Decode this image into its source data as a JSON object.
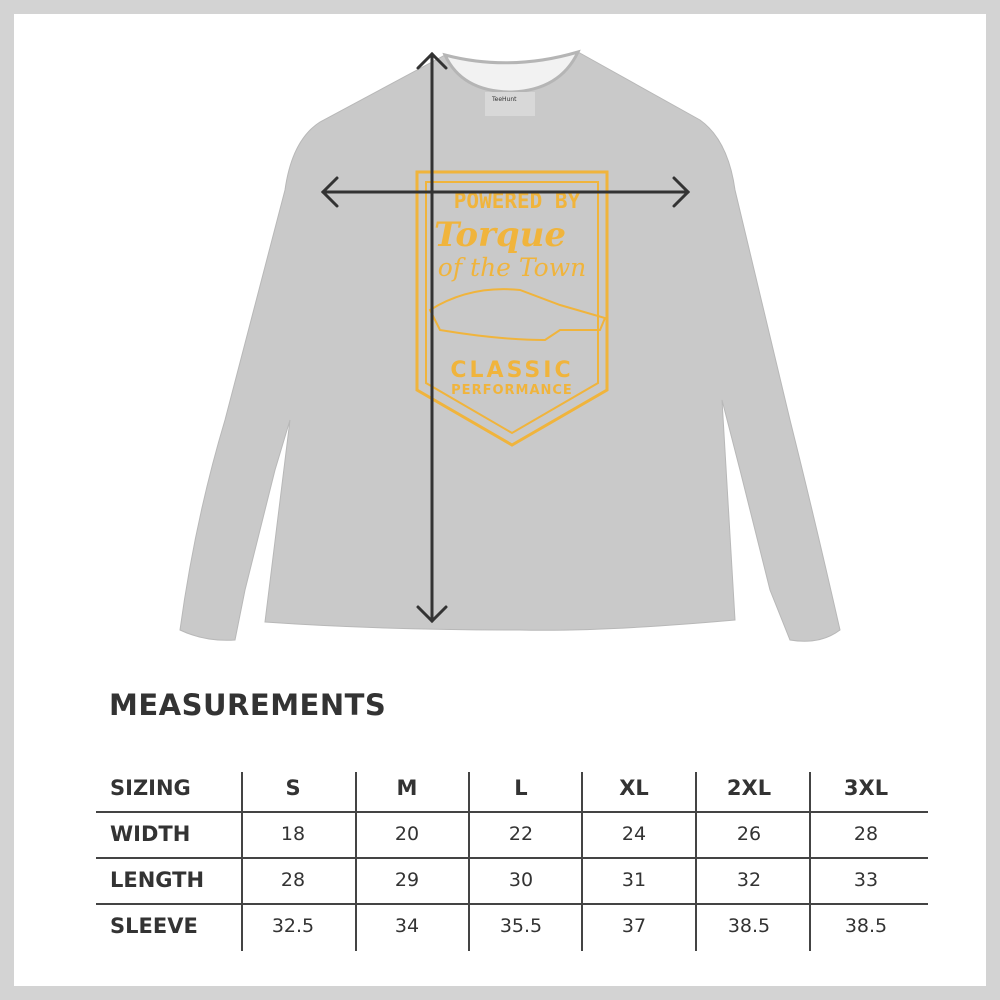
{
  "product": {
    "label_brand": "TeeHunt",
    "graphic_text": [
      "POWERED BY",
      "Torque",
      "of the Town",
      "CLASSIC",
      "PERFORMANCE"
    ],
    "shirt_color": "#c8c8c8",
    "graphic_color": "#f0b43c"
  },
  "measurements": {
    "title": "MEASUREMENTS",
    "header": [
      "SIZING",
      "S",
      "M",
      "L",
      "XL",
      "2XL",
      "3XL"
    ],
    "rows": [
      {
        "label": "WIDTH",
        "values": [
          "18",
          "20",
          "22",
          "24",
          "26",
          "28"
        ]
      },
      {
        "label": "LENGTH",
        "values": [
          "28",
          "29",
          "30",
          "31",
          "32",
          "33"
        ]
      },
      {
        "label": "SLEEVE",
        "values": [
          "32.5",
          "34",
          "35.5",
          "37",
          "38.5",
          "38.5"
        ]
      }
    ]
  }
}
